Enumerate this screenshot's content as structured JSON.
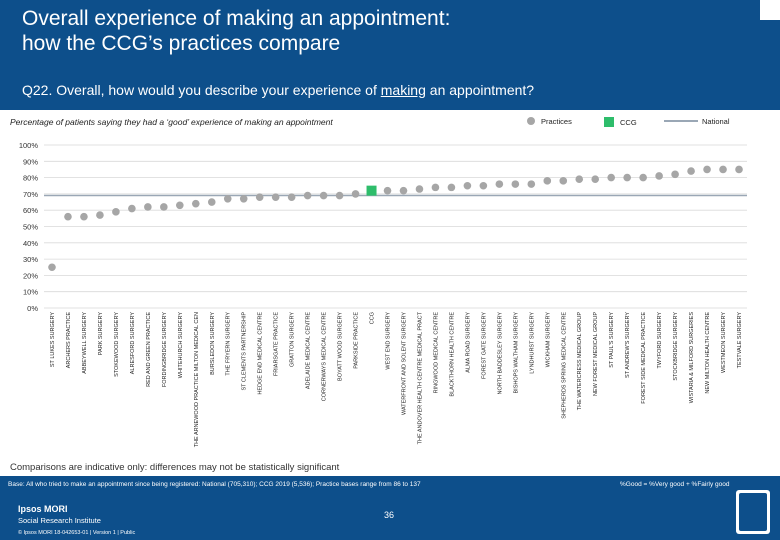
{
  "header": {
    "title": "Overall experience of making an appointment:\nhow the CCG’s practices compare",
    "question_pre": "Q22. Overall, how would you describe your experience of ",
    "question_u": "making",
    "question_post": " an appointment?"
  },
  "subtitle": "Percentage of patients saying they had a ‘good’ experience of making an appointment",
  "legend": {
    "practices": "Practices",
    "ccg": "CCG",
    "national": "National"
  },
  "colors": {
    "header": "#0d4f8b",
    "practice": "#a6a6a6",
    "ccg": "#2ebd6b",
    "national": "#9aa7b5",
    "grid": "#d9d9d9"
  },
  "comparisons_note": "Comparisons are indicative only: differences may not be statistically significant",
  "footer": {
    "base": "Base: All who tried to make an appointment since being registered: National (705,310); CCG 2019 (5,536); Practice bases range from 86 to 137",
    "good_def": "%Good = %Very good + %Fairly good",
    "brand": "Ipsos MORI",
    "brand_sub": "Social Research Institute",
    "copyright": "© Ipsos MORI     18-042653-01 | Version 1 | Public",
    "page": "36"
  },
  "chart_data": {
    "type": "scatter",
    "title": "Percentage of patients saying they had a ‘good’ experience of making an appointment",
    "ylim": [
      0,
      100
    ],
    "yticks": [
      "0%",
      "10%",
      "20%",
      "30%",
      "40%",
      "50%",
      "60%",
      "70%",
      "80%",
      "90%",
      "100%"
    ],
    "national": 69,
    "ccg_label": "CCG",
    "ccg_value": 72,
    "categories": [
      "ST LUKES SURGERY",
      "ARCHERS PRACTICE",
      "ABBEYWELL SURGERY",
      "PARK SURGERY",
      "STOKEWOOD SURGERY",
      "ALRESFORD SURGERY",
      "RED AND GREEN PRACTICE",
      "FORDINGBRIDGE SURGERY",
      "WHITEHURCH SURGERY",
      "THE ARNEWOOD PRACTICE MILTON MEDICAL CEN",
      "BURSLEDON SURGERY",
      "THE FRYERN SURGERY",
      "ST CLEMENTS PARTNERSHIP",
      "HEDGE END MEDICAL CENTRE",
      "FRIARSGATE PRACTICE",
      "GRATTON SURGERY",
      "ADELAIDE MEDICAL CENTRE",
      "CORNERWAYS MEDICAL CENTRE",
      "BOYATT WOOD SURGERY",
      "PARKSIDE PRACTICE",
      "CCG",
      "WEST END SURGERY",
      "WATERFRONT AND SOLENT SURGERY",
      "THE ANDOVER HEALTH CENTRE MEDICAL PRACT",
      "RINGWOOD MEDICAL CENTRE",
      "BLACKTHORN HEALTH CENTRE",
      "ALMA ROAD SURGERY",
      "FOREST GATE SURGERY",
      "NORTH BADDESLEY SURGERY",
      "BISHOPS WALTHAM SURGERY",
      "LYNDHURST SURGERY",
      "WICKHAM SURGERY",
      "SHEPHERDS SPRING MEDICAL CENTRE",
      "THE WATERCRESS MEDICAL GROUP",
      "NEW FOREST MEDICAL GROUP",
      "ST PAUL'S SURGERY",
      "ST ANDREW'S SURGERY",
      "FOREST SIDE MEDICAL PRACTICE",
      "TWYFORD SURGERY",
      "STOCKBRIDGE SURGERY",
      "WISTARIA & MILFORD SURGERIES",
      "NEW MILTON HEALTH CENTRE",
      "WESTMEON SURGERY",
      "TESTVALE SURGERY"
    ],
    "values": [
      25,
      56,
      56,
      57,
      59,
      61,
      62,
      62,
      63,
      64,
      65,
      67,
      67,
      68,
      68,
      68,
      69,
      69,
      69,
      70,
      72,
      72,
      72,
      73,
      74,
      74,
      75,
      75,
      76,
      76,
      76,
      78,
      78,
      79,
      79,
      80,
      80,
      80,
      81,
      82,
      84,
      85,
      85,
      85
    ]
  }
}
